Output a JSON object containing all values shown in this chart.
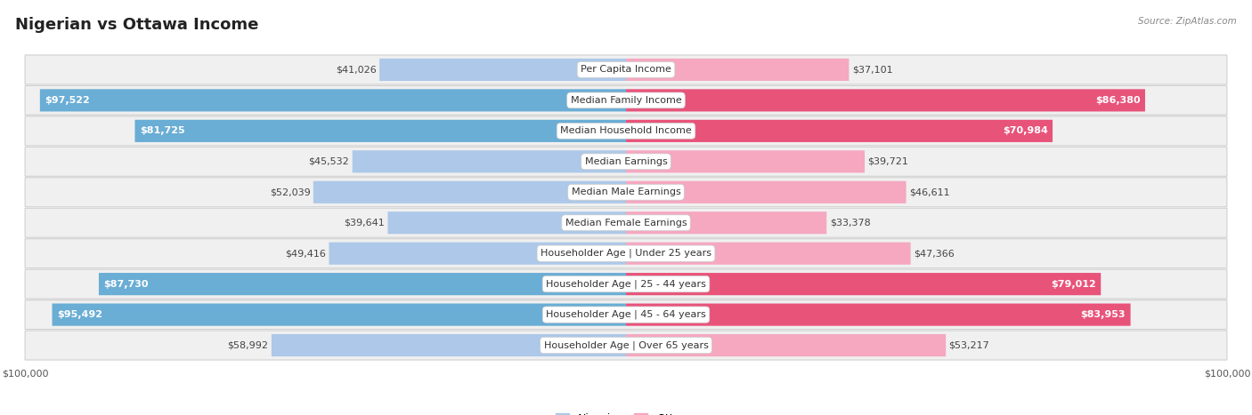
{
  "title": "Nigerian vs Ottawa Income",
  "source": "Source: ZipAtlas.com",
  "categories": [
    "Per Capita Income",
    "Median Family Income",
    "Median Household Income",
    "Median Earnings",
    "Median Male Earnings",
    "Median Female Earnings",
    "Householder Age | Under 25 years",
    "Householder Age | 25 - 44 years",
    "Householder Age | 45 - 64 years",
    "Householder Age | Over 65 years"
  ],
  "nigerian_values": [
    41026,
    97522,
    81725,
    45532,
    52039,
    39641,
    49416,
    87730,
    95492,
    58992
  ],
  "ottawa_values": [
    37101,
    86380,
    70984,
    39721,
    46611,
    33378,
    47366,
    79012,
    83953,
    53217
  ],
  "nigerian_labels": [
    "$41,026",
    "$97,522",
    "$81,725",
    "$45,532",
    "$52,039",
    "$39,641",
    "$49,416",
    "$87,730",
    "$95,492",
    "$58,992"
  ],
  "ottawa_labels": [
    "$37,101",
    "$86,380",
    "$70,984",
    "$39,721",
    "$46,611",
    "$33,378",
    "$47,366",
    "$79,012",
    "$83,953",
    "$53,217"
  ],
  "max_value": 100000,
  "nigerian_color_light": "#adc8e8",
  "nigerian_color_dark": "#6aadd5",
  "ottawa_color_light": "#f5a8c0",
  "ottawa_color_dark": "#e8537a",
  "threshold": 70000,
  "bar_height": 0.72,
  "row_bg_color": "#f0f0f0",
  "row_border_color": "#d0d0d0",
  "title_fontsize": 13,
  "label_fontsize": 8,
  "cat_fontsize": 8,
  "axis_label_fontsize": 8,
  "legend_fontsize": 9
}
